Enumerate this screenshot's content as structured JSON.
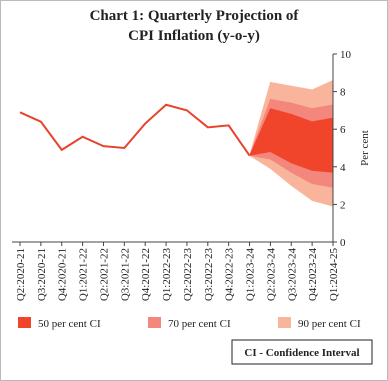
{
  "chart_data": {
    "type": "fan",
    "title_lines": [
      "Chart 1: Quarterly Projection of",
      "CPI Inflation (y-o-y)"
    ],
    "y_label": "Per cent",
    "categories": [
      "Q2:2020-21",
      "Q3:2020-21",
      "Q4:2020-21",
      "Q1:2021-22",
      "Q2:2021-22",
      "Q3:2021-22",
      "Q4:2021-22",
      "Q1:2022-23",
      "Q2:2022-23",
      "Q3:2022-23",
      "Q4:2022-23",
      "Q1:2023-24",
      "Q2:2023-24",
      "Q3:2023-24",
      "Q4:2023-24",
      "Q1:2024-25"
    ],
    "line": {
      "color": "#e8432b",
      "values": [
        6.9,
        6.4,
        4.9,
        5.6,
        5.1,
        5.0,
        6.3,
        7.3,
        7.0,
        6.1,
        6.2,
        4.6,
        null,
        null,
        null,
        null
      ]
    },
    "bands": [
      {
        "name": "90 per cent CI",
        "color": "#f9b49c",
        "high": [
          null,
          null,
          null,
          null,
          null,
          null,
          null,
          null,
          null,
          null,
          null,
          4.6,
          8.5,
          8.3,
          8.1,
          8.6
        ],
        "low": [
          null,
          null,
          null,
          null,
          null,
          null,
          null,
          null,
          null,
          null,
          null,
          4.6,
          3.9,
          3.0,
          2.2,
          1.9
        ]
      },
      {
        "name": "70 per cent CI",
        "color": "#f4877d",
        "high": [
          null,
          null,
          null,
          null,
          null,
          null,
          null,
          null,
          null,
          null,
          null,
          4.6,
          7.6,
          7.4,
          7.1,
          7.3
        ],
        "low": [
          null,
          null,
          null,
          null,
          null,
          null,
          null,
          null,
          null,
          null,
          null,
          4.6,
          4.4,
          3.7,
          3.1,
          2.9
        ]
      },
      {
        "name": "50 per cent CI",
        "color": "#f0452b",
        "high": [
          null,
          null,
          null,
          null,
          null,
          null,
          null,
          null,
          null,
          null,
          null,
          4.6,
          7.1,
          6.8,
          6.4,
          6.6
        ],
        "low": [
          null,
          null,
          null,
          null,
          null,
          null,
          null,
          null,
          null,
          null,
          null,
          4.6,
          4.8,
          4.2,
          3.8,
          3.7
        ]
      }
    ],
    "legend_order": [
      2,
      1,
      0
    ],
    "note": "CI - Confidence Interval",
    "ylim": [
      0,
      10
    ],
    "yticks": [
      0,
      2,
      4,
      6,
      8,
      10
    ]
  }
}
